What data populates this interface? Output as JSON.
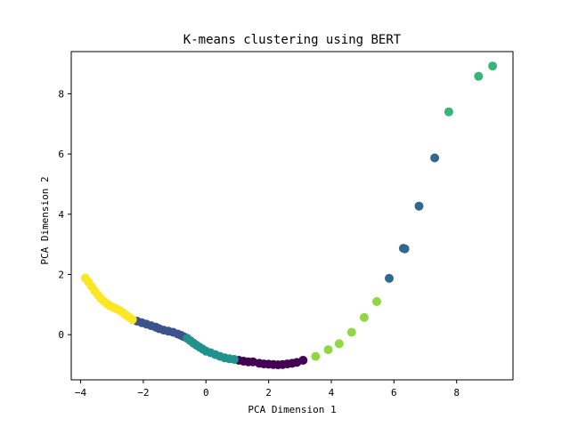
{
  "chart_data": {
    "type": "scatter",
    "title": "K-means clustering using BERT",
    "xlabel": "PCA Dimension 1",
    "ylabel": "PCA Dimension 2",
    "xlim": [
      -4.3,
      9.8
    ],
    "ylim": [
      -1.5,
      9.4
    ],
    "xticks": [
      -4,
      -2,
      0,
      2,
      4,
      6,
      8
    ],
    "yticks": [
      0,
      2,
      4,
      6,
      8
    ],
    "grid": false,
    "legend": "none",
    "series": [
      {
        "color": "#440154",
        "points": [
          [
            1.05,
            -0.85
          ],
          [
            1.2,
            -0.88
          ],
          [
            1.35,
            -0.9
          ],
          [
            1.5,
            -0.9
          ],
          [
            1.7,
            -0.95
          ],
          [
            1.85,
            -0.97
          ],
          [
            2.0,
            -0.98
          ],
          [
            2.15,
            -0.99
          ],
          [
            2.3,
            -1.0
          ],
          [
            2.45,
            -0.99
          ],
          [
            2.6,
            -0.97
          ],
          [
            2.75,
            -0.95
          ],
          [
            2.9,
            -0.92
          ],
          [
            3.1,
            -0.85
          ]
        ]
      },
      {
        "color": "#3b528b",
        "points": [
          [
            -2.2,
            0.45
          ],
          [
            -2.05,
            0.4
          ],
          [
            -1.9,
            0.35
          ],
          [
            -1.75,
            0.3
          ],
          [
            -1.6,
            0.25
          ],
          [
            -1.5,
            0.2
          ],
          [
            -1.35,
            0.15
          ],
          [
            -1.2,
            0.12
          ],
          [
            -1.05,
            0.08
          ],
          [
            -0.9,
            0.02
          ],
          [
            -0.8,
            -0.02
          ],
          [
            -0.7,
            -0.07
          ]
        ]
      },
      {
        "color": "#21918c",
        "points": [
          [
            -0.6,
            -0.12
          ],
          [
            -0.5,
            -0.2
          ],
          [
            -0.4,
            -0.28
          ],
          [
            -0.3,
            -0.35
          ],
          [
            -0.2,
            -0.42
          ],
          [
            -0.1,
            -0.48
          ],
          [
            0.0,
            -0.55
          ],
          [
            0.15,
            -0.6
          ],
          [
            0.3,
            -0.66
          ],
          [
            0.45,
            -0.72
          ],
          [
            0.6,
            -0.77
          ],
          [
            0.75,
            -0.8
          ],
          [
            0.9,
            -0.82
          ]
        ]
      },
      {
        "color": "#31688e",
        "points": [
          [
            5.85,
            1.87
          ],
          [
            6.3,
            2.87
          ],
          [
            6.35,
            2.85
          ],
          [
            6.8,
            4.27
          ],
          [
            7.3,
            5.87
          ]
        ]
      },
      {
        "color": "#35b779",
        "points": [
          [
            7.75,
            7.4
          ],
          [
            8.7,
            8.58
          ],
          [
            9.15,
            8.92
          ]
        ]
      },
      {
        "color": "#90d743",
        "points": [
          [
            3.5,
            -0.72
          ],
          [
            3.9,
            -0.5
          ],
          [
            4.25,
            -0.3
          ],
          [
            4.65,
            0.08
          ],
          [
            5.05,
            0.57
          ],
          [
            5.45,
            1.1
          ]
        ]
      },
      {
        "color": "#fde725",
        "points": [
          [
            -3.85,
            1.88
          ],
          [
            -3.75,
            1.75
          ],
          [
            -3.65,
            1.6
          ],
          [
            -3.55,
            1.45
          ],
          [
            -3.45,
            1.32
          ],
          [
            -3.35,
            1.2
          ],
          [
            -3.25,
            1.1
          ],
          [
            -3.15,
            1.02
          ],
          [
            -3.05,
            0.95
          ],
          [
            -2.95,
            0.9
          ],
          [
            -2.85,
            0.85
          ],
          [
            -2.75,
            0.8
          ],
          [
            -2.65,
            0.73
          ],
          [
            -2.55,
            0.65
          ],
          [
            -2.45,
            0.58
          ],
          [
            -2.35,
            0.5
          ]
        ]
      }
    ]
  }
}
